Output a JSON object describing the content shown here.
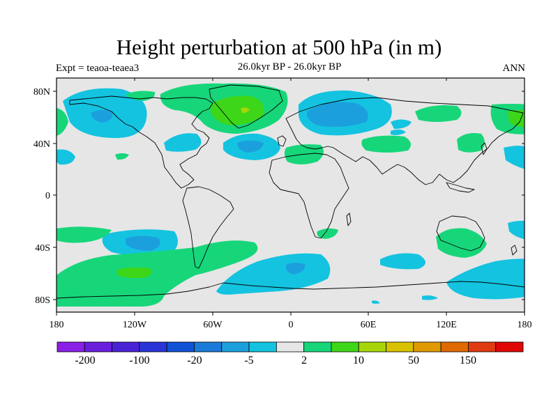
{
  "map": {
    "title": "Height perturbation at 500 hPa (in m)",
    "left_label": "Expt = teaoa-teaea3",
    "center_label": "26.0kyr BP - 26.0kyr BP",
    "right_label": "ANN",
    "projection": "cylindrical equidistant",
    "lon_range": [
      -180,
      180
    ],
    "lat_range": [
      -90,
      90
    ],
    "lat_ticks": [
      "80N",
      "40N",
      "0",
      "40S",
      "80S"
    ],
    "lon_ticks": [
      "180",
      "120W",
      "60W",
      "0",
      "60E",
      "120E",
      "180"
    ],
    "background_color": "#e6e6e6",
    "coastline_color": "#000000"
  },
  "colorbar": {
    "colors": [
      "#8a1fe6",
      "#6a1fdc",
      "#4a22d6",
      "#2a35d8",
      "#0f52d6",
      "#1a7ad9",
      "#1ba0dd",
      "#14c3e0",
      "#e6e6e6",
      "#17d67a",
      "#3ed618",
      "#a6d60a",
      "#d8c200",
      "#e09a00",
      "#e06a00",
      "#e03a10",
      "#e00606"
    ],
    "labels": [
      "-200",
      "-100",
      "-20",
      "-5",
      "2",
      "10",
      "50",
      "150"
    ]
  },
  "field_colors": {
    "neg_weak": "#14c3e0",
    "neg_mid": "#1ba0dd",
    "pos_weak": "#17d67a",
    "pos_mid": "#3ed618",
    "pos_strong": "#a6d60a"
  }
}
